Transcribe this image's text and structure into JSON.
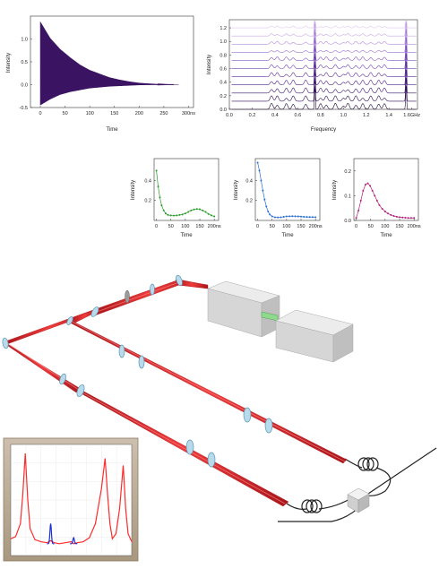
{
  "chart_data": [
    {
      "type": "line",
      "id": "decay",
      "xlabel": "Time",
      "ylabel": "Intensity",
      "xlim": [
        -20,
        310
      ],
      "ylim": [
        -0.5,
        1.5
      ],
      "x_ticks": [
        "0",
        "50",
        "100",
        "150",
        "200",
        "250",
        "300ns"
      ],
      "y_ticks": [
        "-0.5",
        "0.0",
        "0.5",
        "1.0"
      ],
      "color": "#3a1363",
      "grid": false,
      "envelope_t": [
        0,
        20,
        40,
        60,
        80,
        100,
        120,
        140,
        160,
        180,
        200,
        220,
        240,
        260
      ],
      "envelope_upper": [
        1.38,
        1.02,
        0.78,
        0.6,
        0.44,
        0.32,
        0.24,
        0.16,
        0.11,
        0.07,
        0.04,
        0.025,
        0.012,
        0.005
      ],
      "envelope_lower": [
        -0.45,
        -0.32,
        -0.22,
        -0.16,
        -0.12,
        -0.08,
        -0.06,
        -0.04,
        -0.03,
        -0.02,
        -0.01,
        -0.005,
        -0.002,
        0.0
      ]
    },
    {
      "type": "line",
      "id": "spectra",
      "xlabel": "Frequency",
      "ylabel": "Intensity",
      "xlim": [
        0,
        1.65
      ],
      "ylim": [
        0,
        1.32
      ],
      "x_ticks": [
        "0.0",
        "0.2",
        "0.4",
        "0.6",
        "0.8",
        "1.0",
        "1.2",
        "1.4",
        "1.6GHz"
      ],
      "y_ticks": [
        "0.0",
        "0.2",
        "0.4",
        "0.6",
        "0.8",
        "1.0",
        "1.2"
      ],
      "grid": false,
      "series_offsets": [
        0.0,
        0.12,
        0.24,
        0.36,
        0.48,
        0.6,
        0.72,
        0.84,
        0.96,
        1.08,
        1.2
      ],
      "series_colors": [
        "#1e0638",
        "#2d0c55",
        "#3d156f",
        "#4d2088",
        "#5e2c9e",
        "#7040b2",
        "#8455c2",
        "#9a70cf",
        "#b08cdb",
        "#c6a8e6",
        "#dcc6f0"
      ],
      "peak_positions": [
        0.37,
        0.42,
        0.5,
        0.56,
        0.67,
        0.8,
        0.85,
        0.93,
        1.0,
        1.04,
        1.11,
        1.17,
        1.24,
        1.31,
        1.36
      ],
      "sharp_peaks": [
        0.75,
        1.55
      ]
    },
    {
      "type": "scatter",
      "id": "inset-green",
      "xlabel": "Time",
      "ylabel": "Intensity",
      "xlim": [
        -8,
        215
      ],
      "ylim": [
        0,
        0.62
      ],
      "x_ticks": [
        "0",
        "50",
        "100",
        "150",
        "200ns"
      ],
      "y_ticks": [
        "0.2",
        "0.4"
      ],
      "color": "#2a9a2a",
      "points": [
        [
          0,
          0.5
        ],
        [
          6,
          0.34
        ],
        [
          12,
          0.23
        ],
        [
          18,
          0.15
        ],
        [
          25,
          0.1
        ],
        [
          32,
          0.07
        ],
        [
          40,
          0.055
        ],
        [
          50,
          0.05
        ],
        [
          60,
          0.048
        ],
        [
          70,
          0.05
        ],
        [
          80,
          0.055
        ],
        [
          90,
          0.06
        ],
        [
          100,
          0.07
        ],
        [
          110,
          0.085
        ],
        [
          120,
          0.1
        ],
        [
          130,
          0.11
        ],
        [
          140,
          0.115
        ],
        [
          150,
          0.112
        ],
        [
          160,
          0.1
        ],
        [
          170,
          0.085
        ],
        [
          180,
          0.065
        ],
        [
          190,
          0.05
        ],
        [
          200,
          0.04
        ]
      ]
    },
    {
      "type": "scatter",
      "id": "inset-blue",
      "xlabel": "Time",
      "ylabel": "Intensity",
      "xlim": [
        -8,
        215
      ],
      "ylim": [
        0,
        0.62
      ],
      "x_ticks": [
        "0",
        "50",
        "100",
        "150",
        "200ns"
      ],
      "y_ticks": [
        "0.2",
        "0.4"
      ],
      "color": "#2a6fd0",
      "points": [
        [
          0,
          0.58
        ],
        [
          6,
          0.5
        ],
        [
          12,
          0.4
        ],
        [
          18,
          0.3
        ],
        [
          24,
          0.21
        ],
        [
          30,
          0.14
        ],
        [
          36,
          0.09
        ],
        [
          42,
          0.06
        ],
        [
          50,
          0.04
        ],
        [
          60,
          0.032
        ],
        [
          70,
          0.03
        ],
        [
          80,
          0.032
        ],
        [
          90,
          0.036
        ],
        [
          100,
          0.04
        ],
        [
          110,
          0.042
        ],
        [
          120,
          0.043
        ],
        [
          130,
          0.042
        ],
        [
          140,
          0.04
        ],
        [
          150,
          0.038
        ],
        [
          160,
          0.036
        ],
        [
          170,
          0.035
        ],
        [
          180,
          0.034
        ],
        [
          190,
          0.034
        ],
        [
          200,
          0.033
        ]
      ]
    },
    {
      "type": "scatter",
      "id": "inset-magenta",
      "xlabel": "Time",
      "ylabel": "Intensity",
      "xlim": [
        -8,
        215
      ],
      "ylim": [
        0,
        0.25
      ],
      "x_ticks": [
        "0",
        "50",
        "100",
        "150",
        "200ns"
      ],
      "y_ticks": [
        "0.0",
        "0.1",
        "0.2"
      ],
      "color": "#b0207a",
      "points": [
        [
          0,
          0.01
        ],
        [
          8,
          0.04
        ],
        [
          16,
          0.08
        ],
        [
          24,
          0.12
        ],
        [
          32,
          0.145
        ],
        [
          40,
          0.15
        ],
        [
          48,
          0.14
        ],
        [
          56,
          0.12
        ],
        [
          64,
          0.1
        ],
        [
          72,
          0.08
        ],
        [
          80,
          0.062
        ],
        [
          90,
          0.047
        ],
        [
          100,
          0.036
        ],
        [
          110,
          0.028
        ],
        [
          120,
          0.022
        ],
        [
          130,
          0.018
        ],
        [
          140,
          0.015
        ],
        [
          150,
          0.013
        ],
        [
          160,
          0.012
        ],
        [
          170,
          0.011
        ],
        [
          180,
          0.01
        ],
        [
          190,
          0.01
        ],
        [
          200,
          0.01
        ]
      ]
    },
    {
      "type": "line",
      "id": "spectrum-inset",
      "ylim": [
        0,
        1
      ],
      "grid": true,
      "x": [
        0,
        0.04,
        0.08,
        0.1,
        0.12,
        0.14,
        0.16,
        0.2,
        0.25,
        0.3,
        0.33,
        0.36,
        0.4,
        0.45,
        0.5,
        0.52,
        0.55,
        0.6,
        0.65,
        0.7,
        0.75,
        0.78,
        0.8,
        0.82,
        0.84,
        0.87,
        0.9,
        0.93,
        0.95,
        0.97,
        1.0
      ],
      "series": [
        {
          "color": "#ff2a2a",
          "values": [
            0.15,
            0.17,
            0.3,
            0.6,
            1.0,
            0.55,
            0.25,
            0.14,
            0.12,
            0.11,
            0.13,
            0.11,
            0.1,
            0.11,
            0.12,
            0.1,
            0.11,
            0.12,
            0.16,
            0.3,
            0.65,
            0.95,
            0.6,
            0.3,
            0.15,
            0.2,
            0.45,
            0.88,
            0.45,
            0.2,
            0.12
          ]
        },
        {
          "color": "#1a2fd6",
          "peaks": [
            [
              0.33,
              0.3
            ],
            [
              0.52,
              0.16
            ]
          ]
        }
      ]
    }
  ],
  "diagram": {
    "beam_color": "#d9262a",
    "lens_color": "#a8d4e6",
    "box_color": "#dcdcdc",
    "crystal_color": "#8fd98f",
    "fiber_color": "#222222"
  }
}
